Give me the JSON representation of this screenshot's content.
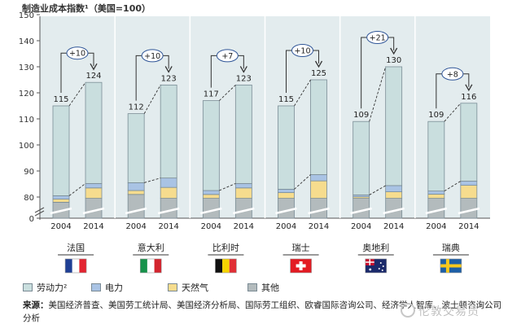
{
  "chart_data": {
    "type": "bar",
    "title": "制造业成本指数¹（美国=100）",
    "y_ticks": [
      "0",
      "80",
      "90",
      "100",
      "110",
      "120",
      "130",
      "140",
      "150"
    ],
    "x_ticks": [
      "2004",
      "2014"
    ],
    "countries": [
      {
        "name": "法国",
        "flag": "france",
        "delta": "+10",
        "bars": [
          {
            "year": "2004",
            "total": 115,
            "labor": 34.5,
            "electricity": 1.3,
            "gas": 1.2,
            "other": 78
          },
          {
            "year": "2014",
            "total": 124,
            "labor": 38.8,
            "electricity": 1.7,
            "gas": 4.0,
            "other": 79.5
          }
        ]
      },
      {
        "name": "意大利",
        "flag": "italy",
        "delta": "+10",
        "bars": [
          {
            "year": "2004",
            "total": 112,
            "labor": 26.5,
            "electricity": 3.0,
            "gas": 1.5,
            "other": 81
          },
          {
            "year": "2014",
            "total": 123,
            "labor": 35.7,
            "electricity": 3.6,
            "gas": 4.2,
            "other": 79.5
          }
        ]
      },
      {
        "name": "比利时",
        "flag": "belgium",
        "delta": "+7",
        "bars": [
          {
            "year": "2004",
            "total": 117,
            "labor": 34.5,
            "electricity": 1.5,
            "gas": 1.5,
            "other": 79.5
          },
          {
            "year": "2014",
            "total": 123,
            "labor": 37.8,
            "electricity": 1.7,
            "gas": 4.0,
            "other": 79.5
          }
        ]
      },
      {
        "name": "瑞士",
        "flag": "switzerland",
        "delta": "+10",
        "bars": [
          {
            "year": "2004",
            "total": 115,
            "labor": 32.0,
            "electricity": 1.3,
            "gas": 2.2,
            "other": 79.5
          },
          {
            "year": "2014",
            "total": 125,
            "labor": 36.4,
            "electricity": 2.4,
            "gas": 6.7,
            "other": 79.5
          }
        ]
      },
      {
        "name": "奥地利",
        "flag": "austria",
        "delta": "+21",
        "bars": [
          {
            "year": "2004",
            "total": 109,
            "labor": 28.2,
            "electricity": 0.7,
            "gas": 0.6,
            "other": 79.5
          },
          {
            "year": "2014",
            "total": 130,
            "labor": 45.6,
            "electricity": 2.4,
            "gas": 2.5,
            "other": 79.5
          }
        ]
      },
      {
        "name": "瑞典",
        "flag": "sweden",
        "delta": "+8",
        "bars": [
          {
            "year": "2004",
            "total": 109,
            "labor": 26.7,
            "electricity": 1.2,
            "gas": 1.6,
            "other": 79.5
          },
          {
            "year": "2014",
            "total": 116,
            "labor": 29.9,
            "electricity": 1.6,
            "gas": 5.0,
            "other": 79.5
          }
        ]
      }
    ],
    "legend": [
      {
        "key": "labor",
        "label": "劳动力²",
        "color": "#c9dede"
      },
      {
        "key": "electricity",
        "label": "电力",
        "color": "#a9c3e4"
      },
      {
        "key": "gas",
        "label": "天然气",
        "color": "#f6dc8e"
      },
      {
        "key": "other",
        "label": "其他",
        "color": "#b3bbbd"
      }
    ],
    "colors": {
      "background": "#e3ecee",
      "bar_border": "#7b8d96",
      "axis": "#555555"
    }
  },
  "source": {
    "label": "来源：",
    "text": "美国经济普查、美国劳工统计局、美国经济分析局、国际劳工组织、欧睿国际咨询公司、经济学人智库、波士顿咨询公司分析"
  },
  "watermark": "伦敦交易员"
}
